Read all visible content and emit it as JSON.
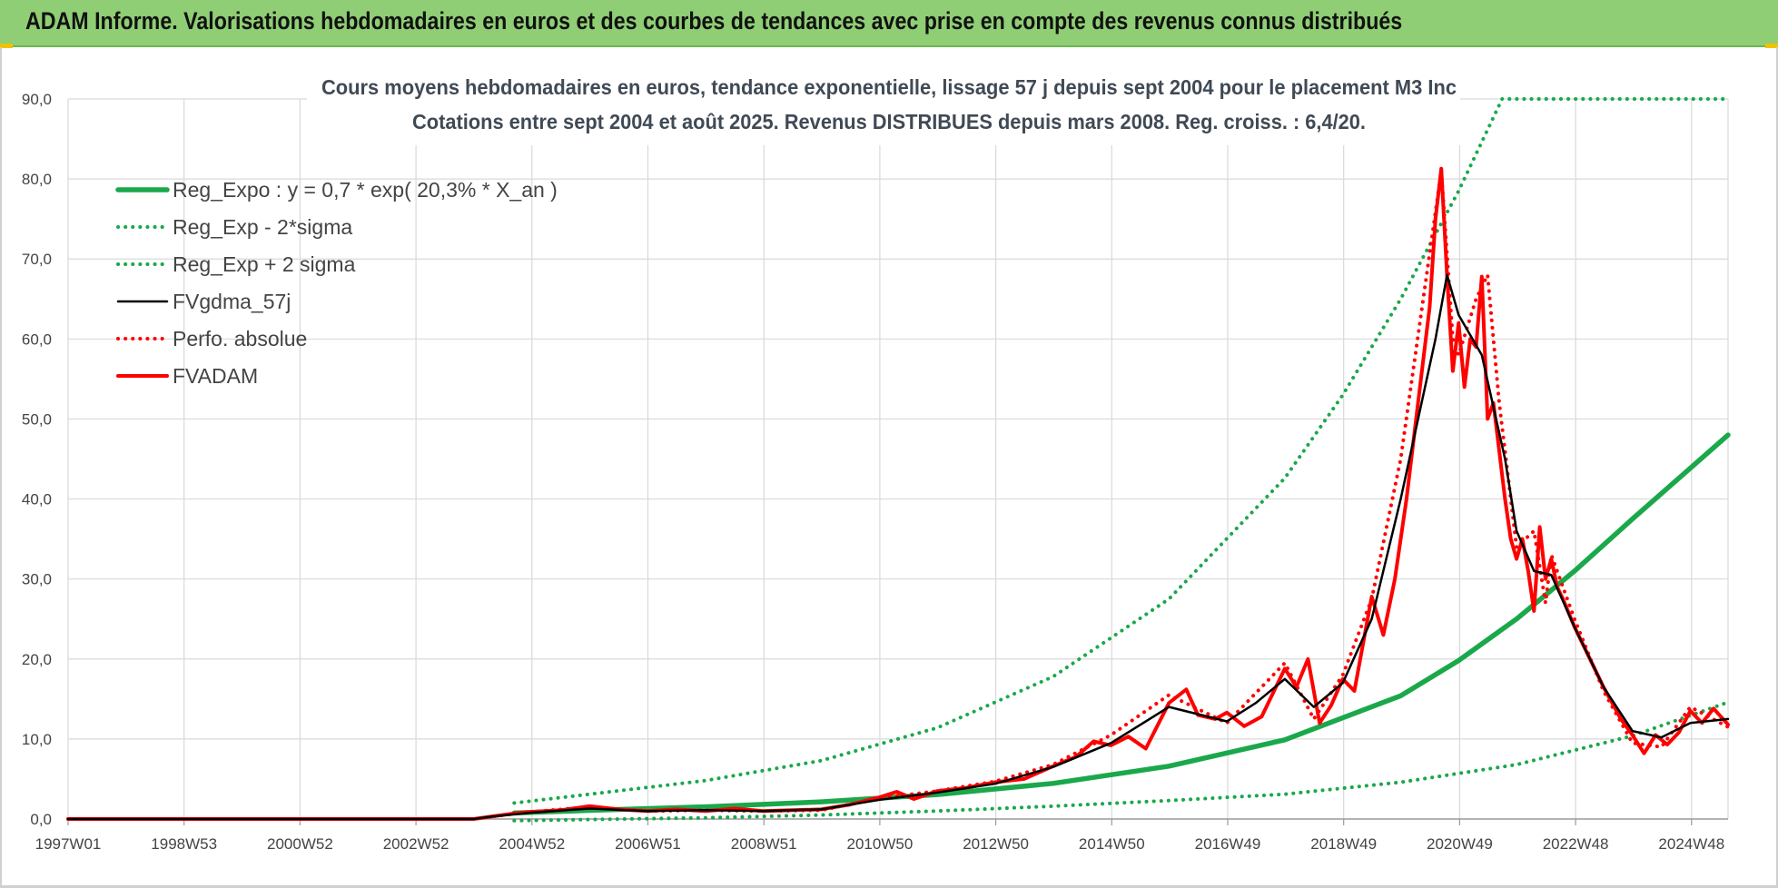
{
  "banner": {
    "title": "ADAM Informe. Valorisations hebdomadaires en euros et des courbes de tendances avec prise en compte des revenus connus distribués"
  },
  "colors": {
    "banner": "#8fce74",
    "reg_green": "#1aa84b",
    "dotted_green": "#1aa84b",
    "black": "#000000",
    "red": "#ff0000"
  },
  "chart_data": {
    "type": "line",
    "title": "Cours moyens hebdomadaires en euros, tendance exponentielle, lissage 57 j depuis sept 2004 pour le placement M3 Inc",
    "subtitle": "Cotations entre sept 2004 et août 2025. Revenus DISTRIBUES depuis mars 2008. Reg. croiss. : 6,4/20.",
    "xlabel": "",
    "ylabel": "",
    "x_tick_labels": [
      "1997W01",
      "1998W53",
      "2000W52",
      "2002W52",
      "2004W52",
      "2006W51",
      "2008W51",
      "2010W50",
      "2012W50",
      "2014W50",
      "2016W49",
      "2018W49",
      "2020W49",
      "2022W48",
      "2024W48"
    ],
    "x_range": [
      1997.0,
      2025.65
    ],
    "y_tick_labels": [
      "0,0",
      "10,0",
      "20,0",
      "30,0",
      "40,0",
      "50,0",
      "60,0",
      "70,0",
      "80,0",
      "90,0"
    ],
    "ylim": [
      0,
      90
    ],
    "grid": true,
    "legend_position": "top-left",
    "series": [
      {
        "name": "Reg_Expo : y = 0,7 * exp( 20,3% *  X_an )",
        "style": "solid-thick",
        "color": "#1aa84b",
        "points": [
          [
            2004.7,
            0.75
          ],
          [
            2006,
            1.08
          ],
          [
            2008,
            1.52
          ],
          [
            2010,
            2.15
          ],
          [
            2012,
            3.05
          ],
          [
            2014,
            4.45
          ],
          [
            2016,
            6.6
          ],
          [
            2018,
            9.9
          ],
          [
            2020,
            15.4
          ],
          [
            2021,
            19.8
          ],
          [
            2022,
            25.0
          ],
          [
            2023,
            31.0
          ],
          [
            2024,
            37.5
          ],
          [
            2025.65,
            48.0
          ]
        ]
      },
      {
        "name": "Reg_Exp - 2*sigma",
        "style": "dotted",
        "color": "#1aa84b",
        "points": [
          [
            2004.7,
            -0.2
          ],
          [
            2008,
            0.15
          ],
          [
            2010,
            0.5
          ],
          [
            2012,
            1.0
          ],
          [
            2014,
            1.6
          ],
          [
            2016,
            2.3
          ],
          [
            2018,
            3.1
          ],
          [
            2020,
            4.6
          ],
          [
            2022,
            6.8
          ],
          [
            2024,
            10.4
          ],
          [
            2025.65,
            14.6
          ]
        ]
      },
      {
        "name": "Reg_Exp + 2 sigma",
        "style": "dotted",
        "color": "#1aa84b",
        "points": [
          [
            2004.7,
            2.0
          ],
          [
            2006,
            3.1
          ],
          [
            2008,
            4.8
          ],
          [
            2010,
            7.3
          ],
          [
            2012,
            11.4
          ],
          [
            2014,
            17.8
          ],
          [
            2016,
            27.5
          ],
          [
            2018,
            42.6
          ],
          [
            2019,
            53.0
          ],
          [
            2020,
            65.0
          ],
          [
            2021,
            78.5
          ],
          [
            2021.75,
            90.0
          ],
          [
            2025.65,
            90.0
          ]
        ]
      },
      {
        "name": "FVgdma_57j",
        "style": "solid",
        "color": "#000000",
        "points": [
          [
            1997.0,
            0.0
          ],
          [
            2004.0,
            0.0
          ],
          [
            2004.3,
            0.3
          ],
          [
            2005,
            0.8
          ],
          [
            2006,
            1.3
          ],
          [
            2007,
            1.0
          ],
          [
            2008,
            1.1
          ],
          [
            2009,
            1.0
          ],
          [
            2010,
            1.2
          ],
          [
            2011,
            2.4
          ],
          [
            2012,
            3.3
          ],
          [
            2013,
            4.4
          ],
          [
            2014,
            6.5
          ],
          [
            2015,
            9.5
          ],
          [
            2016,
            14.0
          ],
          [
            2017,
            12.2
          ],
          [
            2017.5,
            14.5
          ],
          [
            2018,
            17.5
          ],
          [
            2018.5,
            14.0
          ],
          [
            2019,
            17.0
          ],
          [
            2019.5,
            25.0
          ],
          [
            2020,
            40.0
          ],
          [
            2020.6,
            60.0
          ],
          [
            2020.8,
            68.0
          ],
          [
            2021,
            63.0
          ],
          [
            2021.4,
            58.0
          ],
          [
            2021.8,
            45.0
          ],
          [
            2022,
            36.0
          ],
          [
            2022.3,
            31.0
          ],
          [
            2022.6,
            30.5
          ],
          [
            2023,
            24.0
          ],
          [
            2023.5,
            16.5
          ],
          [
            2024,
            11.0
          ],
          [
            2024.5,
            10.2
          ],
          [
            2025,
            12.0
          ],
          [
            2025.65,
            12.5
          ]
        ]
      },
      {
        "name": "Perfo. absolue",
        "style": "dotted",
        "color": "#ff0000",
        "points": [
          [
            1997.0,
            0.0
          ],
          [
            2004.0,
            0.0
          ],
          [
            2004.3,
            0.3
          ],
          [
            2005,
            0.9
          ],
          [
            2006,
            1.5
          ],
          [
            2007,
            1.0
          ],
          [
            2008,
            1.1
          ],
          [
            2009,
            1.0
          ],
          [
            2010,
            1.1
          ],
          [
            2011,
            2.6
          ],
          [
            2012,
            3.5
          ],
          [
            2013,
            4.7
          ],
          [
            2014,
            6.8
          ],
          [
            2015,
            10.5
          ],
          [
            2016,
            15.5
          ],
          [
            2017,
            12.0
          ],
          [
            2018,
            19.5
          ],
          [
            2018.5,
            12.5
          ],
          [
            2019,
            18.0
          ],
          [
            2019.5,
            27.5
          ],
          [
            2020,
            45.0
          ],
          [
            2020.7,
            81.0
          ],
          [
            2020.9,
            60.0
          ],
          [
            2021,
            58.0
          ],
          [
            2021.3,
            65.0
          ],
          [
            2021.5,
            68.0
          ],
          [
            2021.7,
            52.0
          ],
          [
            2022,
            34.0
          ],
          [
            2022.3,
            36.0
          ],
          [
            2022.5,
            27.0
          ],
          [
            2022.6,
            33.0
          ],
          [
            2023,
            25.0
          ],
          [
            2023.5,
            16.0
          ],
          [
            2024,
            9.5
          ],
          [
            2024.5,
            9.0
          ],
          [
            2025,
            14.0
          ],
          [
            2025.65,
            11.5
          ]
        ]
      },
      {
        "name": "FVADAM",
        "style": "solid-thick",
        "color": "#ff0000",
        "points": [
          [
            1997.0,
            0.0
          ],
          [
            2004.0,
            0.0
          ],
          [
            2004.3,
            0.3
          ],
          [
            2004.7,
            0.7
          ],
          [
            2005,
            0.9
          ],
          [
            2005.5,
            1.1
          ],
          [
            2006,
            1.6
          ],
          [
            2006.5,
            1.2
          ],
          [
            2007,
            1.0
          ],
          [
            2007.5,
            1.2
          ],
          [
            2008,
            1.0
          ],
          [
            2008.5,
            1.3
          ],
          [
            2009,
            1.0
          ],
          [
            2009.5,
            1.1
          ],
          [
            2010,
            1.2
          ],
          [
            2010.5,
            1.8
          ],
          [
            2011,
            2.7
          ],
          [
            2011.3,
            3.4
          ],
          [
            2011.6,
            2.5
          ],
          [
            2012,
            3.5
          ],
          [
            2012.5,
            3.9
          ],
          [
            2013,
            4.6
          ],
          [
            2013.5,
            5.0
          ],
          [
            2014,
            6.6
          ],
          [
            2014.4,
            7.8
          ],
          [
            2014.7,
            9.7
          ],
          [
            2015,
            9.2
          ],
          [
            2015.3,
            10.3
          ],
          [
            2015.6,
            8.8
          ],
          [
            2016,
            14.5
          ],
          [
            2016.3,
            16.2
          ],
          [
            2016.5,
            13.0
          ],
          [
            2016.8,
            12.5
          ],
          [
            2017,
            13.3
          ],
          [
            2017.3,
            11.6
          ],
          [
            2017.6,
            12.8
          ],
          [
            2018,
            18.8
          ],
          [
            2018.2,
            16.5
          ],
          [
            2018.4,
            20.0
          ],
          [
            2018.6,
            12.0
          ],
          [
            2018.8,
            14.2
          ],
          [
            2019,
            17.5
          ],
          [
            2019.2,
            16.0
          ],
          [
            2019.5,
            27.8
          ],
          [
            2019.7,
            23.0
          ],
          [
            2019.9,
            30.0
          ],
          [
            2020.1,
            40.0
          ],
          [
            2020.3,
            52.0
          ],
          [
            2020.5,
            64.0
          ],
          [
            2020.6,
            75.0
          ],
          [
            2020.7,
            81.3
          ],
          [
            2020.8,
            68.0
          ],
          [
            2020.9,
            56.0
          ],
          [
            2021.0,
            62.0
          ],
          [
            2021.1,
            54.0
          ],
          [
            2021.2,
            60.0
          ],
          [
            2021.3,
            59.0
          ],
          [
            2021.4,
            67.8
          ],
          [
            2021.5,
            50.0
          ],
          [
            2021.6,
            52.0
          ],
          [
            2021.8,
            40.0
          ],
          [
            2021.9,
            35.0
          ],
          [
            2022.0,
            32.5
          ],
          [
            2022.1,
            35.0
          ],
          [
            2022.2,
            31.0
          ],
          [
            2022.3,
            26.0
          ],
          [
            2022.4,
            36.5
          ],
          [
            2022.5,
            30.0
          ],
          [
            2022.6,
            32.5
          ],
          [
            2022.7,
            29.0
          ],
          [
            2022.8,
            27.5
          ],
          [
            2023.0,
            24.0
          ],
          [
            2023.2,
            21.0
          ],
          [
            2023.5,
            16.5
          ],
          [
            2023.8,
            12.5
          ],
          [
            2024.0,
            10.5
          ],
          [
            2024.2,
            8.2
          ],
          [
            2024.4,
            10.5
          ],
          [
            2024.6,
            9.3
          ],
          [
            2024.8,
            10.8
          ],
          [
            2025.0,
            13.5
          ],
          [
            2025.2,
            12.0
          ],
          [
            2025.4,
            13.8
          ],
          [
            2025.65,
            11.8
          ]
        ]
      }
    ]
  }
}
